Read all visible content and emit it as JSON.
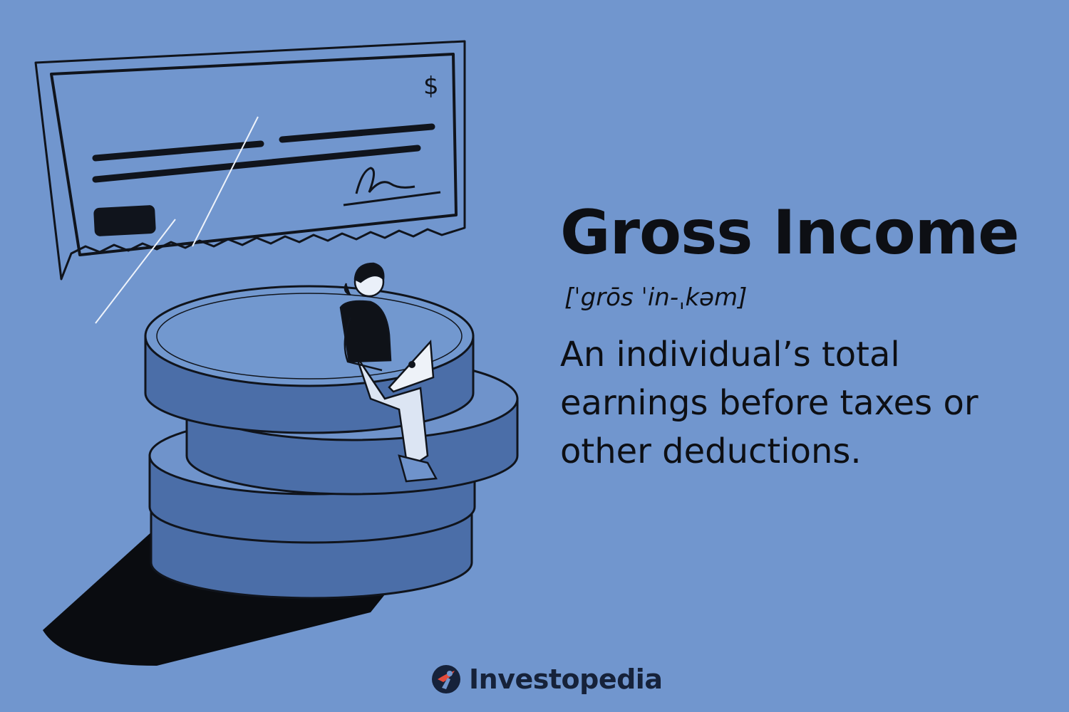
{
  "illustration": {
    "check_symbol": "$"
  },
  "definition": {
    "term": "Gross Income",
    "pronunciation": "[ˈgrōs ˈin-ˌkəm]",
    "text": "An individual’s total earnings before taxes or other deductions."
  },
  "brand": {
    "name": "Investopedia",
    "logo_icon": "investopedia-i-logo-icon"
  },
  "colors": {
    "background": "#7196ce",
    "ink": "#0d0f14",
    "coin_face": "#6f93cb",
    "coin_side": "#4b6ea8",
    "shadow": "#0a0c10"
  }
}
